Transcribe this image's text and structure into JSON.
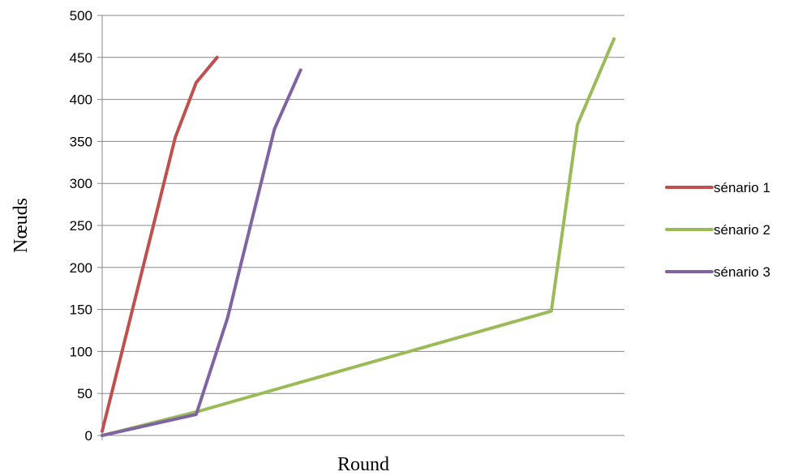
{
  "chart_data": {
    "type": "line",
    "title": "",
    "xlabel": "Round",
    "ylabel": "Nœuds",
    "ylim": [
      0,
      500
    ],
    "yticks": [
      0,
      50,
      100,
      150,
      200,
      250,
      300,
      350,
      400,
      450,
      500
    ],
    "grid": true,
    "legend_position": "right",
    "x_unit_note": "x axis has no tick labels; x values are relative round positions",
    "xlim": [
      0,
      100
    ],
    "series": [
      {
        "name": "sénario 1",
        "color": "#c0504d",
        "x": [
          0,
          14,
          18,
          22
        ],
        "y": [
          5,
          355,
          420,
          450
        ]
      },
      {
        "name": "sénario 2",
        "color": "#9bbb59",
        "x": [
          0,
          18,
          86,
          91,
          98
        ],
        "y": [
          0,
          28,
          148,
          370,
          472
        ]
      },
      {
        "name": "sénario 3",
        "color": "#8064a2",
        "x": [
          0,
          18,
          24,
          33,
          38
        ],
        "y": [
          0,
          25,
          140,
          365,
          435
        ]
      }
    ]
  }
}
